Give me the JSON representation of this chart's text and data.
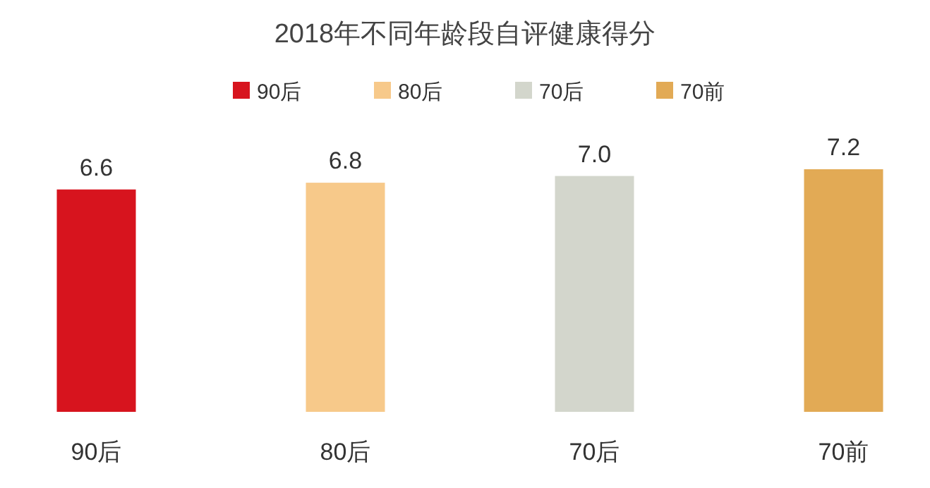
{
  "chart_data": {
    "type": "bar",
    "title": "2018年不同年龄段自评健康得分",
    "categories": [
      "90后",
      "80后",
      "70后",
      "70前"
    ],
    "stacked": true,
    "series": [
      {
        "name": "90后",
        "color": "#d7141e",
        "values": [
          6.6,
          null,
          null,
          null
        ],
        "value_labels": [
          "6.6",
          null,
          null,
          null
        ]
      },
      {
        "name": "80后",
        "color": "#f7c98a",
        "values": [
          null,
          6.8,
          null,
          null
        ],
        "value_labels": [
          null,
          "6.8",
          null,
          null
        ]
      },
      {
        "name": "70后",
        "color": "#d3d6cc",
        "values": [
          null,
          null,
          7.0,
          null
        ],
        "value_labels": [
          null,
          null,
          "7.0",
          null
        ]
      },
      {
        "name": "70前",
        "color": "#e2aa55",
        "values": [
          null,
          null,
          null,
          7.2
        ],
        "value_labels": [
          null,
          null,
          null,
          "7.2"
        ]
      }
    ],
    "legend": "top"
  }
}
